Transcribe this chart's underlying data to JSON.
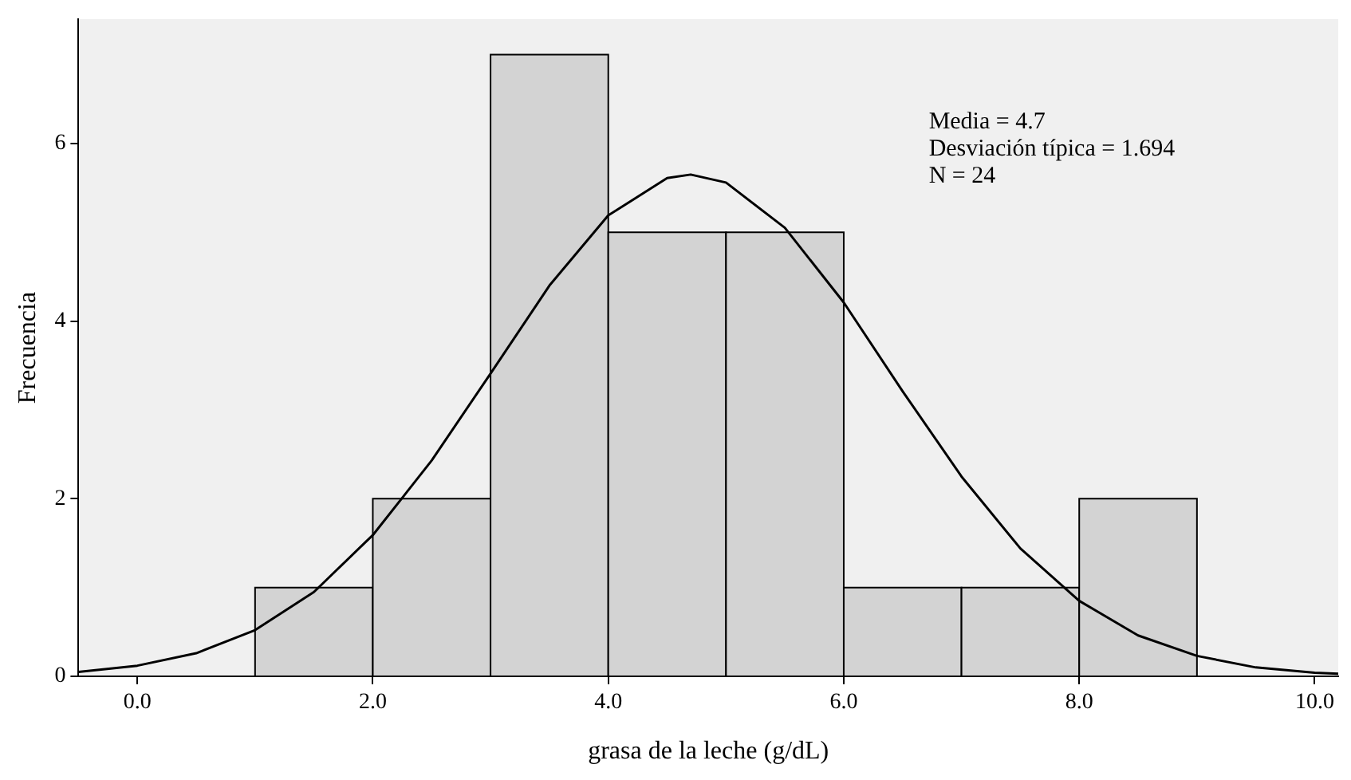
{
  "chart_data": {
    "type": "histogram",
    "xlabel": "grasa de la leche (g/dL)",
    "ylabel": "Frecuencia",
    "bins": [
      1,
      2,
      3,
      4,
      5,
      6,
      7,
      8,
      9
    ],
    "values": [
      1,
      2,
      7,
      5,
      5,
      1,
      1,
      2
    ],
    "color": "#d3d3d3",
    "series": [
      {
        "type": "line",
        "color": "#000000",
        "x": [
          -0.5,
          0,
          0.5,
          1,
          1.5,
          2,
          2.5,
          3,
          3.5,
          4,
          4.5,
          4.7,
          5,
          5.5,
          6,
          6.5,
          7,
          7.5,
          8,
          8.5,
          9,
          9.5,
          10,
          10.2
        ],
        "values": [
          0.05,
          0.12,
          0.26,
          0.52,
          0.95,
          1.59,
          2.43,
          3.41,
          4.4,
          5.19,
          5.61,
          5.65,
          5.56,
          5.05,
          4.21,
          3.21,
          2.25,
          1.44,
          0.85,
          0.46,
          0.23,
          0.1,
          0.04,
          0.03
        ]
      }
    ],
    "xlim": [
      -0.5,
      10.2
    ],
    "xticks": [
      {
        "value": 0,
        "label": "0.0"
      },
      {
        "value": 2,
        "label": "2.0"
      },
      {
        "value": 4,
        "label": "4.0"
      },
      {
        "value": 6,
        "label": "6.0"
      },
      {
        "value": 8,
        "label": "8.0"
      },
      {
        "value": 10,
        "label": "10.0"
      }
    ],
    "ylim": [
      0,
      7.4
    ],
    "yticks": [
      0,
      2,
      4,
      6
    ],
    "annotations": [
      "Media = 4.7",
      "Desviación típica = 1.694",
      "N = 24"
    ],
    "grid": false,
    "legend": false
  }
}
